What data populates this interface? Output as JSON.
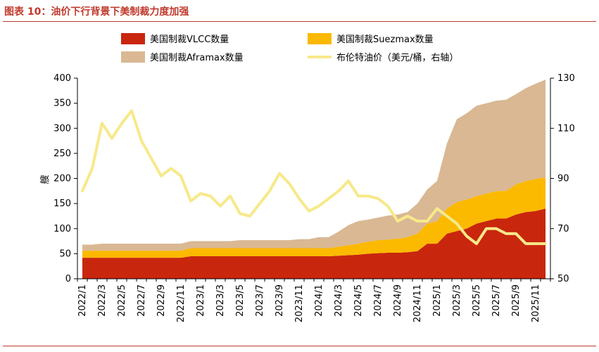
{
  "figure": {
    "title": "图表 10：油价下行背景下美制裁力度加强"
  },
  "colors": {
    "vlcc": "#c9260e",
    "suezmax": "#fbb900",
    "aframax": "#d9b893",
    "brent": "#f7e98a",
    "title": "#c0392b",
    "axis": "#000000"
  },
  "chart_data": {
    "type": "area",
    "title": "图表 10：油价下行背景下美制裁力度加强",
    "xlabel": "",
    "ylabel": "艘",
    "y2label": "",
    "ylim": [
      0,
      400
    ],
    "yticks": [
      0,
      50,
      100,
      150,
      200,
      250,
      300,
      350,
      400
    ],
    "y2lim": [
      50,
      130
    ],
    "y2ticks": [
      50,
      70,
      90,
      110,
      130
    ],
    "grid": false,
    "legend_placement": "top",
    "x": [
      "2022/1",
      "2022/2",
      "2022/3",
      "2022/4",
      "2022/5",
      "2022/6",
      "2022/7",
      "2022/8",
      "2022/9",
      "2022/10",
      "2022/11",
      "2022/12",
      "2023/1",
      "2023/2",
      "2023/3",
      "2023/4",
      "2023/5",
      "2023/6",
      "2023/7",
      "2023/8",
      "2023/9",
      "2023/10",
      "2023/11",
      "2023/12",
      "2024/1",
      "2024/2",
      "2024/3",
      "2024/4",
      "2024/5",
      "2024/6",
      "2024/7",
      "2024/8",
      "2024/9",
      "2024/10",
      "2024/11",
      "2024/12",
      "2025/1",
      "2025/2",
      "2025/3",
      "2025/4",
      "2025/5",
      "2025/6",
      "2025/7",
      "2025/8",
      "2025/9",
      "2025/10",
      "2025/11",
      "2025/12"
    ],
    "xtick_labels": [
      "2022/1",
      "2022/3",
      "2022/5",
      "2022/7",
      "2022/9",
      "2022/11",
      "2023/1",
      "2023/3",
      "2023/5",
      "2023/7",
      "2023/9",
      "2023/11",
      "2024/1",
      "2024/3",
      "2024/5",
      "2024/7",
      "2024/9",
      "2024/11",
      "2025/1",
      "2025/3",
      "2025/5",
      "2025/7",
      "2025/9",
      "2025/11"
    ],
    "series": [
      {
        "name": "美国制裁VLCC数量",
        "kind": "stacked_area",
        "values": [
          42,
          42,
          42,
          42,
          42,
          42,
          42,
          42,
          42,
          42,
          42,
          45,
          45,
          45,
          45,
          45,
          45,
          45,
          45,
          45,
          45,
          45,
          45,
          45,
          45,
          45,
          46,
          47,
          48,
          50,
          51,
          52,
          52,
          53,
          55,
          70,
          70,
          90,
          95,
          100,
          110,
          115,
          120,
          120,
          128,
          133,
          135,
          140
        ]
      },
      {
        "name": "美国制裁Suezmax数量",
        "kind": "stacked_area",
        "values": [
          14,
          14,
          14,
          14,
          14,
          14,
          14,
          14,
          14,
          14,
          14,
          16,
          16,
          16,
          16,
          16,
          16,
          16,
          16,
          16,
          16,
          16,
          16,
          16,
          16,
          16,
          18,
          20,
          22,
          24,
          26,
          26,
          28,
          30,
          35,
          40,
          45,
          50,
          58,
          58,
          55,
          55,
          55,
          55,
          60,
          62,
          64,
          62
        ]
      },
      {
        "name": "美国制裁Aframax数量",
        "kind": "stacked_area",
        "values": [
          12,
          12,
          14,
          14,
          14,
          14,
          14,
          14,
          14,
          14,
          14,
          14,
          14,
          14,
          14,
          14,
          16,
          16,
          16,
          16,
          16,
          16,
          18,
          18,
          22,
          22,
          30,
          40,
          45,
          44,
          45,
          48,
          48,
          50,
          60,
          68,
          80,
          130,
          165,
          172,
          180,
          180,
          180,
          182,
          180,
          185,
          190,
          195
        ]
      },
      {
        "name": "布伦特油价（美元/桶，右轴）",
        "kind": "line",
        "axis": "right",
        "values": [
          85,
          94,
          112,
          106,
          112,
          117,
          105,
          98,
          91,
          94,
          91,
          81,
          84,
          83,
          79,
          83,
          76,
          75,
          80,
          85,
          92,
          88,
          82,
          77,
          79,
          82,
          85,
          89,
          83,
          83,
          82,
          79,
          73,
          75,
          73,
          73,
          78,
          75,
          72,
          67,
          64,
          70,
          70,
          68,
          68,
          64,
          64,
          64
        ]
      }
    ]
  }
}
